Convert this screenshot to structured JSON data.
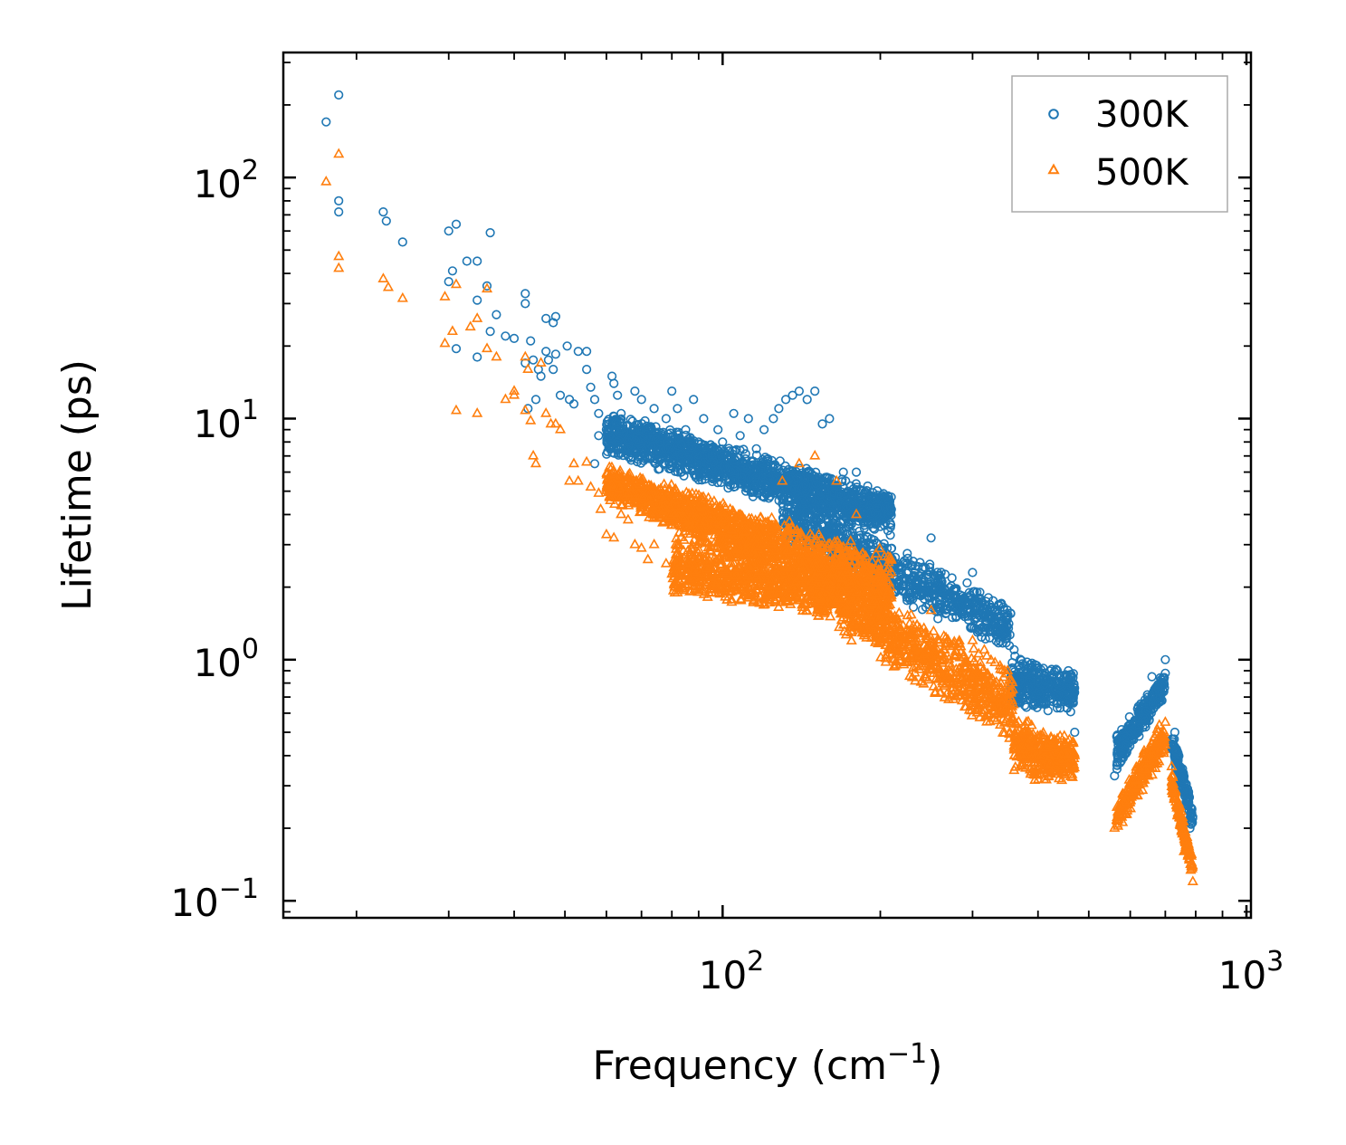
{
  "chart_data": {
    "type": "scatter",
    "title": "",
    "xlabel": "Frequency (cm",
    "xlabel_superscript": "−1",
    "xlabel_suffix": ")",
    "ylabel": "Lifetime (ps)",
    "xscale": "log",
    "yscale": "log",
    "xlim": [
      14.5,
      1020
    ],
    "ylim": [
      0.085,
      330
    ],
    "x_ticks": [
      {
        "base": "10",
        "exp": "2",
        "value": 100
      },
      {
        "base": "10",
        "exp": "3",
        "value": 1000
      }
    ],
    "y_ticks": [
      {
        "base": "10",
        "exp": "−1",
        "value": 0.1
      },
      {
        "base": "10",
        "exp": "0",
        "value": 1
      },
      {
        "base": "10",
        "exp": "1",
        "value": 10
      },
      {
        "base": "10",
        "exp": "2",
        "value": 100
      }
    ],
    "grid": false,
    "legend_position": "top-right",
    "series": [
      {
        "name": "300K",
        "marker": "circle",
        "color": "#1f77b4",
        "points": [
          [
            17.5,
            170
          ],
          [
            18.5,
            220
          ],
          [
            18.5,
            80
          ],
          [
            18.5,
            72
          ],
          [
            22.5,
            72
          ],
          [
            22.8,
            66
          ],
          [
            24.5,
            54
          ],
          [
            30,
            60
          ],
          [
            31,
            64
          ],
          [
            30,
            37
          ],
          [
            30.5,
            41
          ],
          [
            31,
            19.5
          ],
          [
            32.5,
            45
          ],
          [
            34,
            45
          ],
          [
            34,
            31
          ],
          [
            36,
            59
          ],
          [
            35.5,
            35.5
          ],
          [
            34,
            18
          ],
          [
            37,
            27
          ],
          [
            36,
            23
          ],
          [
            38.5,
            22
          ],
          [
            40,
            21.5
          ],
          [
            42,
            33
          ],
          [
            42,
            30
          ],
          [
            43,
            21
          ],
          [
            42,
            17
          ],
          [
            43.5,
            17.5
          ],
          [
            44.5,
            16
          ],
          [
            44,
            12
          ],
          [
            42.5,
            11
          ],
          [
            45,
            15
          ],
          [
            46,
            19
          ],
          [
            46,
            26
          ],
          [
            47.5,
            25
          ],
          [
            48,
            26.5
          ],
          [
            48,
            18.5
          ],
          [
            49,
            12.5
          ],
          [
            46.5,
            17.5
          ],
          [
            47.5,
            16
          ],
          [
            50.5,
            20
          ],
          [
            51,
            12
          ],
          [
            52,
            11.5
          ],
          [
            53,
            19
          ],
          [
            55,
            19
          ],
          [
            55,
            16
          ],
          [
            56,
            13.5
          ],
          [
            57,
            12
          ],
          [
            58,
            10.5
          ],
          [
            58,
            8.5
          ],
          [
            57,
            6.5
          ],
          [
            60,
            9
          ],
          [
            61.5,
            15
          ],
          [
            62,
            14
          ],
          [
            63,
            12.5
          ],
          [
            64,
            10.5
          ],
          [
            66,
            8
          ],
          [
            68,
            13
          ],
          [
            70,
            12
          ],
          [
            72,
            9
          ],
          [
            74,
            11
          ],
          [
            76,
            8
          ],
          [
            78,
            10
          ],
          [
            80,
            13
          ],
          [
            82,
            11
          ],
          [
            85,
            9
          ],
          [
            88,
            12
          ],
          [
            90,
            8
          ],
          [
            92,
            10
          ],
          [
            95,
            7.5
          ],
          [
            98,
            9
          ],
          [
            100,
            8
          ],
          [
            105,
            10.5
          ],
          [
            108,
            8.5
          ],
          [
            112,
            10
          ],
          [
            116,
            7.5
          ],
          [
            120,
            9
          ],
          [
            125,
            10
          ],
          [
            128,
            11
          ],
          [
            132,
            12
          ],
          [
            136,
            12.5
          ],
          [
            140,
            13
          ],
          [
            145,
            12
          ],
          [
            150,
            13
          ],
          [
            155,
            9.5
          ],
          [
            160,
            10
          ],
          [
            170,
            6
          ],
          [
            180,
            6
          ],
          [
            210,
            4.2
          ],
          [
            250,
            3.2
          ],
          [
            300,
            2.3
          ],
          [
            340,
            1.7
          ],
          [
            360,
            1.1
          ],
          [
            400,
            0.92
          ],
          [
            460,
            0.85
          ],
          [
            470,
            0.5
          ],
          [
            560,
            0.33
          ],
          [
            660,
            0.85
          ],
          [
            700,
            1.0
          ],
          [
            730,
            0.5
          ],
          [
            780,
            0.2
          ]
        ],
        "bands": [
          {
            "x_range": [
              60,
              210
            ],
            "y_low": [
              7.0,
              3.2
            ],
            "y_high": [
              11.0,
              5.0
            ],
            "density": 1700
          },
          {
            "x_range": [
              130,
              355
            ],
            "y_low": [
              3.0,
              1.05
            ],
            "y_high": [
              5.2,
              1.7
            ],
            "density": 900
          },
          {
            "x_range": [
              355,
              470
            ],
            "y_low": [
              0.62,
              0.6
            ],
            "y_high": [
              1.05,
              0.92
            ],
            "density": 350
          },
          {
            "x_range": [
              565,
              700
            ],
            "y_low": [
              0.33,
              0.7
            ],
            "y_high": [
              0.5,
              0.92
            ],
            "density": 260
          },
          {
            "x_range": [
              720,
              790
            ],
            "y_low": [
              0.4,
              0.19
            ],
            "y_high": [
              0.52,
              0.26
            ],
            "density": 150
          }
        ]
      },
      {
        "name": "500K",
        "marker": "triangle",
        "color": "#ff7f0e",
        "points": [
          [
            17.5,
            96
          ],
          [
            18.5,
            125
          ],
          [
            18.5,
            47
          ],
          [
            18.5,
            42
          ],
          [
            22.5,
            38
          ],
          [
            23,
            35
          ],
          [
            24.5,
            31.5
          ],
          [
            29.5,
            20.5
          ],
          [
            30.5,
            23
          ],
          [
            31,
            10.8
          ],
          [
            31,
            36
          ],
          [
            29.5,
            32
          ],
          [
            33,
            24
          ],
          [
            34,
            26
          ],
          [
            35.5,
            34.5
          ],
          [
            34,
            10.5
          ],
          [
            35.5,
            19.5
          ],
          [
            37,
            18
          ],
          [
            38.5,
            12
          ],
          [
            40,
            13
          ],
          [
            40,
            12.5
          ],
          [
            42,
            18
          ],
          [
            42.5,
            16
          ],
          [
            42,
            10.8
          ],
          [
            43,
            9.8
          ],
          [
            43.5,
            7
          ],
          [
            44,
            6.5
          ],
          [
            45,
            17
          ],
          [
            46,
            10.5
          ],
          [
            47,
            9.5
          ],
          [
            48,
            9.5
          ],
          [
            49,
            9
          ],
          [
            51,
            5.5
          ],
          [
            52,
            6.5
          ],
          [
            53,
            5.5
          ],
          [
            55,
            6.6
          ],
          [
            56,
            5.2
          ],
          [
            58,
            4.9
          ],
          [
            58.5,
            4.2
          ],
          [
            60,
            3.3
          ],
          [
            62,
            3.2
          ],
          [
            64,
            4
          ],
          [
            66,
            3.8
          ],
          [
            68,
            3.0
          ],
          [
            70,
            2.9
          ],
          [
            72,
            2.6
          ],
          [
            74,
            3.0
          ],
          [
            78,
            2.5
          ],
          [
            82,
            2.3
          ],
          [
            85,
            3.4
          ],
          [
            90,
            2.0
          ],
          [
            95,
            2.2
          ],
          [
            100,
            1.9
          ],
          [
            110,
            2.0
          ],
          [
            120,
            1.8
          ],
          [
            130,
            5.5
          ],
          [
            140,
            6.5
          ],
          [
            150,
            7.0
          ],
          [
            165,
            5.5
          ],
          [
            180,
            4.0
          ],
          [
            210,
            2.3
          ],
          [
            250,
            1.6
          ],
          [
            300,
            1.2
          ],
          [
            350,
            0.9
          ],
          [
            380,
            0.55
          ],
          [
            420,
            0.45
          ],
          [
            470,
            0.4
          ],
          [
            560,
            0.2
          ],
          [
            640,
            0.35
          ],
          [
            700,
            0.55
          ],
          [
            720,
            0.36
          ],
          [
            760,
            0.16
          ],
          [
            790,
            0.12
          ]
        ],
        "bands": [
          {
            "x_range": [
              60,
              210
            ],
            "y_low": [
              4.5,
              1.3
            ],
            "y_high": [
              6.5,
              2.8
            ],
            "density": 1700
          },
          {
            "x_range": [
              80,
              160
            ],
            "y_low": [
              1.8,
              1.5
            ],
            "y_high": [
              3.4,
              2.4
            ],
            "density": 700
          },
          {
            "x_range": [
              150,
              360
            ],
            "y_low": [
              1.5,
              0.42
            ],
            "y_high": [
              2.6,
              0.95
            ],
            "density": 900
          },
          {
            "x_range": [
              360,
              470
            ],
            "y_low": [
              0.32,
              0.3
            ],
            "y_high": [
              0.6,
              0.48
            ],
            "density": 350
          },
          {
            "x_range": [
              565,
              700
            ],
            "y_low": [
              0.19,
              0.4
            ],
            "y_high": [
              0.26,
              0.62
            ],
            "density": 260
          },
          {
            "x_range": [
              720,
              790
            ],
            "y_low": [
              0.28,
              0.12
            ],
            "y_high": [
              0.35,
              0.15
            ],
            "density": 150
          }
        ]
      }
    ]
  }
}
